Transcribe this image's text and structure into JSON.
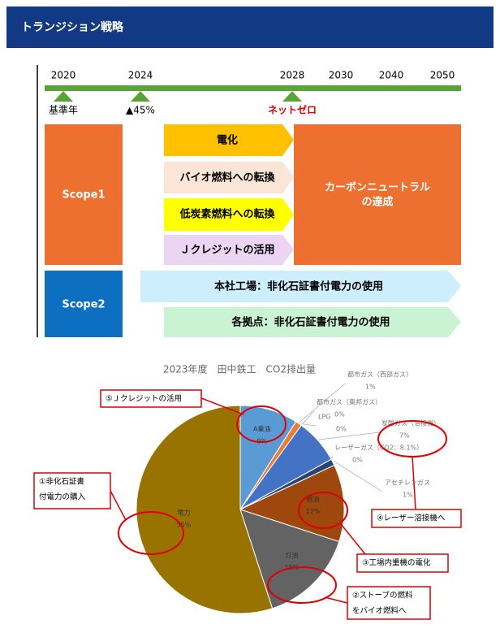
{
  "header": {
    "title": "トランジション戦略"
  },
  "roadmap": {
    "years": [
      "2020",
      "2024",
      "2028",
      "2030",
      "2040",
      "2050"
    ],
    "milestones": [
      "基準年",
      "▲45%",
      "ネットゼロ"
    ],
    "scope1": {
      "label": "Scope1",
      "measures": [
        "電化",
        "バイオ燃料への転換",
        "低炭素燃料への転換",
        "Ｊクレジットの活用"
      ],
      "goal": [
        "カーボンニュートラル",
        "の達成"
      ]
    },
    "scope2": {
      "label": "Scope2",
      "measures": [
        "本社工場：非化石証書付電力の使用",
        "各拠点：非化石証書付電力の使用"
      ]
    }
  },
  "chart_data": {
    "type": "pie",
    "title": "2023年度　田中鉄工　CO2排出量",
    "categories": [
      "A重油",
      "都市ガス（西部ガス）",
      "都市ガス（東邦ガス）",
      "LPG",
      "炭酸ガス（溶接機）",
      "レーザーガス（CO2：8.1%）",
      "アセチレンガス",
      "軽油",
      "灯油",
      "電力"
    ],
    "values": [
      9,
      1,
      0,
      0,
      7,
      0,
      1,
      12,
      15,
      55
    ],
    "value_labels": [
      "9%",
      "1%",
      "0%",
      "0%",
      "7%",
      "0%",
      "1%",
      "12%",
      "15%",
      "55%"
    ],
    "colors": [
      "#5b9bd5",
      "#ed7d31",
      "#a5a5a5",
      "#ffc000",
      "#4472c4",
      "#70ad47",
      "#264478",
      "#9e480e",
      "#636363",
      "#997300"
    ],
    "annotations": [
      [
        "⑤Ｊクレジットの活用"
      ],
      [
        "①非化石証書",
        "付電力の購入"
      ],
      [
        "④レーザー溶接機へ"
      ],
      [
        "③工場内重機の電化"
      ],
      [
        "②ストーブの燃料",
        "をバイオ燃料へ"
      ]
    ]
  }
}
